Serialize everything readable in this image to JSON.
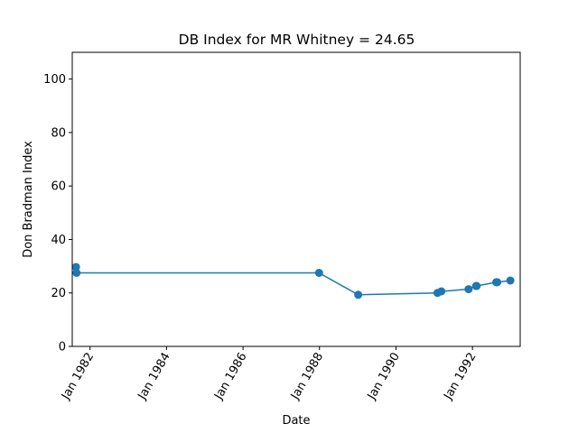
{
  "chart_data": {
    "type": "line",
    "title": "DB Index for MR Whitney = 24.65",
    "xlabel": "Date",
    "ylabel": "Don Bradman Index",
    "xlim": [
      "1981-07-15",
      "1993-04-01"
    ],
    "ylim": [
      0,
      110
    ],
    "x_ticks": [
      "Jan 1982",
      "Jan 1984",
      "Jan 1986",
      "Jan 1988",
      "Jan 1990",
      "Jan 1992"
    ],
    "x_tick_dates": [
      "1982-01-01",
      "1984-01-01",
      "1986-01-01",
      "1988-01-01",
      "1990-01-01",
      "1992-01-01"
    ],
    "y_ticks": [
      0,
      20,
      40,
      60,
      80,
      100
    ],
    "grid": false,
    "color": "#1f77b4",
    "series": [
      {
        "points": [
          {
            "x": "1981-08-20",
            "y": 29.7
          },
          {
            "x": "1981-08-25",
            "y": 27.5
          },
          {
            "x": "1987-12-28",
            "y": 27.5
          },
          {
            "x": "1989-01-05",
            "y": 19.3
          },
          {
            "x": "1991-02-01",
            "y": 20.0
          },
          {
            "x": "1991-03-10",
            "y": 20.6
          },
          {
            "x": "1991-11-25",
            "y": 21.4
          },
          {
            "x": "1992-02-05",
            "y": 22.6
          },
          {
            "x": "1992-02-10",
            "y": 22.6
          },
          {
            "x": "1992-08-15",
            "y": 24.0
          },
          {
            "x": "1992-08-25",
            "y": 24.0
          },
          {
            "x": "1992-12-28",
            "y": 24.65
          }
        ]
      }
    ]
  }
}
